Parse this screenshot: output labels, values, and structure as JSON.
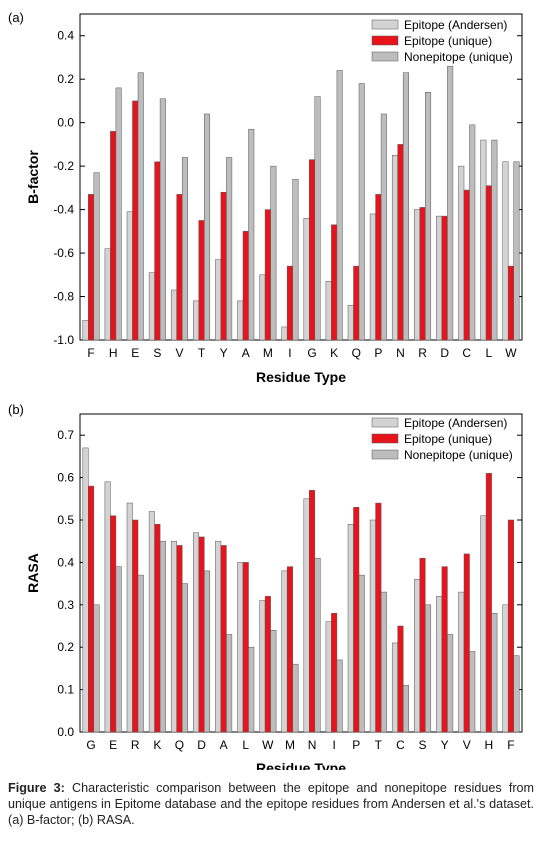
{
  "chart_data": [
    {
      "type": "bar",
      "panel_label": "(a)",
      "xlabel": "Residue Type",
      "ylabel": "B-factor",
      "ylim": [
        -1.0,
        0.5
      ],
      "yticks": [
        -1.0,
        -0.8,
        -0.6,
        -0.4,
        -0.2,
        0.0,
        0.2,
        0.4
      ],
      "ytick_labels": [
        "-1.0",
        "-0.8",
        "-0.6",
        "-0.4",
        "-0.2",
        "0.0",
        "0.2",
        "0.4"
      ],
      "legend_position": "top-right",
      "categories": [
        "F",
        "H",
        "E",
        "S",
        "V",
        "T",
        "Y",
        "A",
        "M",
        "I",
        "G",
        "K",
        "Q",
        "P",
        "N",
        "R",
        "D",
        "C",
        "L",
        "W"
      ],
      "series": [
        {
          "name": "Epitope (Andersen)",
          "color": "#d3d3d3",
          "values": [
            -0.91,
            -0.58,
            -0.41,
            -0.69,
            -0.77,
            -0.82,
            -0.63,
            -0.82,
            -0.7,
            -0.94,
            -0.44,
            -0.73,
            -0.84,
            -0.42,
            -0.15,
            -0.4,
            -0.43,
            -0.2,
            -0.08,
            -0.18
          ]
        },
        {
          "name": "Epitope (unique)",
          "color": "#e8141c",
          "values": [
            -0.33,
            -0.04,
            0.1,
            -0.18,
            -0.33,
            -0.45,
            -0.32,
            -0.5,
            -0.4,
            -0.66,
            -0.17,
            -0.47,
            -0.66,
            -0.33,
            -0.1,
            -0.39,
            -0.43,
            -0.31,
            -0.29,
            -0.66
          ]
        },
        {
          "name": "Nonepitope (unique)",
          "color": "#bdbdbd",
          "values": [
            -0.23,
            0.16,
            0.23,
            0.11,
            -0.16,
            0.04,
            -0.16,
            -0.03,
            -0.2,
            -0.26,
            0.12,
            0.24,
            0.18,
            0.04,
            0.23,
            0.14,
            0.26,
            -0.01,
            -0.08,
            -0.18
          ]
        }
      ]
    },
    {
      "type": "bar",
      "panel_label": "(b)",
      "xlabel": "Residue Type",
      "ylabel": "RASA",
      "ylim": [
        0.0,
        0.75
      ],
      "yticks": [
        0.0,
        0.1,
        0.2,
        0.3,
        0.4,
        0.5,
        0.6,
        0.7
      ],
      "ytick_labels": [
        "0.0",
        "0.1",
        "0.2",
        "0.3",
        "0.4",
        "0.5",
        "0.6",
        "0.7"
      ],
      "legend_position": "top-right",
      "categories": [
        "G",
        "E",
        "R",
        "K",
        "Q",
        "D",
        "A",
        "L",
        "W",
        "M",
        "N",
        "I",
        "P",
        "T",
        "C",
        "S",
        "Y",
        "V",
        "H",
        "F"
      ],
      "series": [
        {
          "name": "Epitope (Andersen)",
          "color": "#d3d3d3",
          "values": [
            0.67,
            0.59,
            0.54,
            0.52,
            0.45,
            0.47,
            0.45,
            0.4,
            0.31,
            0.38,
            0.55,
            0.26,
            0.49,
            0.5,
            0.21,
            0.36,
            0.32,
            0.33,
            0.51,
            0.3
          ]
        },
        {
          "name": "Epitope (unique)",
          "color": "#e8141c",
          "values": [
            0.58,
            0.51,
            0.5,
            0.49,
            0.44,
            0.46,
            0.44,
            0.4,
            0.32,
            0.39,
            0.57,
            0.28,
            0.53,
            0.54,
            0.25,
            0.41,
            0.39,
            0.42,
            0.61,
            0.5
          ]
        },
        {
          "name": "Nonepitope (unique)",
          "color": "#bdbdbd",
          "values": [
            0.3,
            0.39,
            0.37,
            0.45,
            0.35,
            0.38,
            0.23,
            0.2,
            0.24,
            0.16,
            0.41,
            0.17,
            0.37,
            0.33,
            0.11,
            0.3,
            0.23,
            0.19,
            0.28,
            0.18
          ]
        }
      ]
    }
  ],
  "caption": {
    "label": "Figure 3:",
    "text": " Characteristic comparison between the epitope and nonepitope residues from unique antigens in Epitome database and the epitope residues from Andersen et al.'s dataset. (a) B-factor; (b) RASA."
  }
}
